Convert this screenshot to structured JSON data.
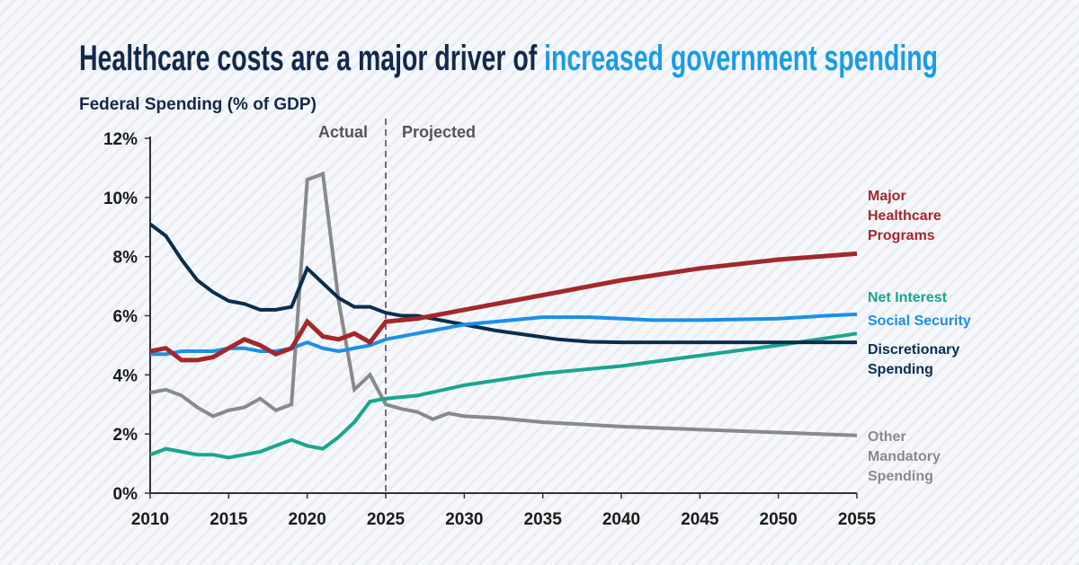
{
  "title": {
    "part1": "Healthcare costs are a major driver of ",
    "part2": "increased government spending",
    "color1": "#13294b",
    "color2": "#1a9be6"
  },
  "chart_data": {
    "type": "line",
    "ylabel": "Federal Spending (% of GDP)",
    "xlim": [
      2010,
      2055
    ],
    "ylim": [
      0,
      12
    ],
    "xticks": [
      "2010",
      "2015",
      "2020",
      "2025",
      "2030",
      "2035",
      "2040",
      "2045",
      "2050",
      "2055"
    ],
    "yticks": [
      "0%",
      "2%",
      "4%",
      "6%",
      "8%",
      "10%",
      "12%"
    ],
    "grid": false,
    "divider": {
      "x": 2025,
      "left_label": "Actual",
      "right_label": "Projected"
    },
    "series": [
      {
        "name": [
          "Major",
          "Healthcare",
          "Programs"
        ],
        "color": "#a3282b",
        "width": 5,
        "x": [
          2010,
          2011,
          2012,
          2013,
          2014,
          2015,
          2016,
          2017,
          2018,
          2019,
          2020,
          2021,
          2022,
          2023,
          2024,
          2025,
          2026,
          2027,
          2028,
          2030,
          2035,
          2040,
          2045,
          2050,
          2055
        ],
        "y": [
          4.8,
          4.9,
          4.5,
          4.5,
          4.6,
          4.9,
          5.2,
          5.0,
          4.7,
          4.9,
          5.8,
          5.3,
          5.2,
          5.4,
          5.1,
          5.8,
          5.85,
          5.9,
          6.0,
          6.2,
          6.7,
          7.2,
          7.6,
          7.9,
          8.1
        ]
      },
      {
        "name": [
          "Net Interest"
        ],
        "color": "#1aa58f",
        "width": 4,
        "x": [
          2010,
          2011,
          2012,
          2013,
          2014,
          2015,
          2016,
          2017,
          2018,
          2019,
          2020,
          2021,
          2022,
          2023,
          2024,
          2025,
          2027,
          2030,
          2035,
          2040,
          2045,
          2050,
          2055
        ],
        "y": [
          1.3,
          1.5,
          1.4,
          1.3,
          1.3,
          1.2,
          1.3,
          1.4,
          1.6,
          1.8,
          1.6,
          1.5,
          1.9,
          2.4,
          3.1,
          3.2,
          3.3,
          3.65,
          4.05,
          4.3,
          4.65,
          5.0,
          5.4
        ]
      },
      {
        "name": [
          "Social Security"
        ],
        "color": "#1c8fe6",
        "width": 4,
        "x": [
          2010,
          2011,
          2012,
          2013,
          2014,
          2015,
          2016,
          2017,
          2018,
          2019,
          2020,
          2021,
          2022,
          2023,
          2024,
          2025,
          2030,
          2035,
          2038,
          2040,
          2042,
          2045,
          2050,
          2053,
          2055
        ],
        "y": [
          4.7,
          4.7,
          4.8,
          4.8,
          4.8,
          4.9,
          4.9,
          4.8,
          4.8,
          4.9,
          5.1,
          4.9,
          4.8,
          4.9,
          5.0,
          5.2,
          5.7,
          5.95,
          5.95,
          5.9,
          5.85,
          5.85,
          5.9,
          6.0,
          6.05
        ]
      },
      {
        "name": [
          "Discretionary",
          "Spending"
        ],
        "color": "#0a2d4f",
        "width": 4,
        "x": [
          2010,
          2011,
          2012,
          2013,
          2014,
          2015,
          2016,
          2017,
          2018,
          2019,
          2020,
          2021,
          2022,
          2023,
          2024,
          2025,
          2026,
          2027,
          2028,
          2029,
          2030,
          2032,
          2034,
          2036,
          2038,
          2040,
          2045,
          2050,
          2055
        ],
        "y": [
          9.1,
          8.7,
          7.9,
          7.2,
          6.8,
          6.5,
          6.4,
          6.2,
          6.2,
          6.3,
          7.6,
          7.1,
          6.6,
          6.3,
          6.3,
          6.1,
          6.0,
          6.0,
          5.9,
          5.8,
          5.7,
          5.5,
          5.35,
          5.2,
          5.12,
          5.1,
          5.1,
          5.1,
          5.1
        ]
      },
      {
        "name": [
          "Other",
          "Mandatory",
          "Spending"
        ],
        "color": "#8a8a8a",
        "width": 4,
        "x": [
          2010,
          2011,
          2012,
          2013,
          2014,
          2015,
          2016,
          2017,
          2018,
          2019,
          2020,
          2021,
          2022,
          2023,
          2024,
          2025,
          2026,
          2027,
          2028,
          2029,
          2030,
          2032,
          2035,
          2040,
          2045,
          2050,
          2055
        ],
        "y": [
          3.4,
          3.5,
          3.3,
          2.9,
          2.6,
          2.8,
          2.9,
          3.2,
          2.8,
          3.0,
          10.6,
          10.8,
          6.5,
          3.5,
          4.0,
          3.0,
          2.85,
          2.75,
          2.5,
          2.7,
          2.6,
          2.55,
          2.4,
          2.25,
          2.15,
          2.05,
          1.95
        ]
      }
    ]
  }
}
